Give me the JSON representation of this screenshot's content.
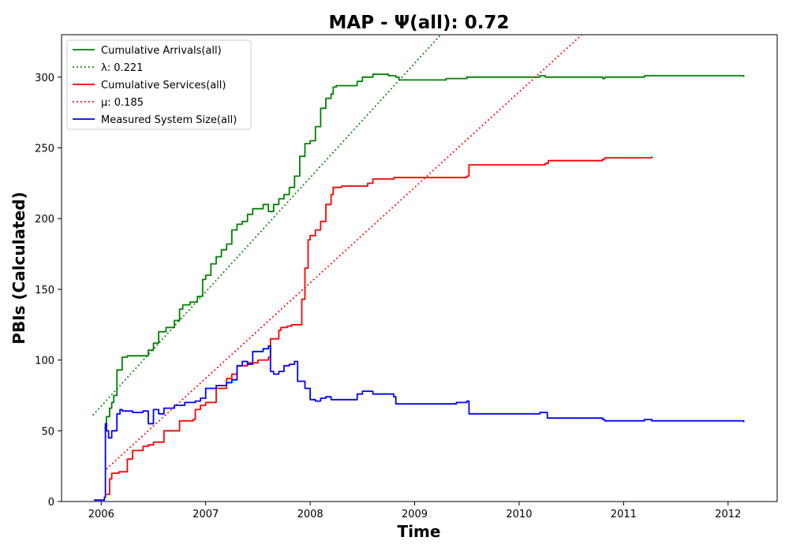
{
  "chart_data": {
    "type": "line",
    "title": "MAP -  Ψ(all): 0.72",
    "xlabel": "Time",
    "ylabel": "PBIs (Calculated)",
    "xlim": [
      2005.62,
      2012.47
    ],
    "ylim": [
      0,
      330
    ],
    "xticks": [
      2006,
      2007,
      2008,
      2009,
      2010,
      2011,
      2012
    ],
    "xtick_labels": [
      "2006",
      "2007",
      "2008",
      "2009",
      "2010",
      "2011",
      "2012"
    ],
    "yticks": [
      0,
      50,
      100,
      150,
      200,
      250,
      300
    ],
    "ytick_labels": [
      "0",
      "50",
      "100",
      "150",
      "200",
      "250",
      "300"
    ],
    "grid": false,
    "legend_position": "upper-left",
    "series": [
      {
        "name": "Cumulative Arrivals(all)",
        "color": "#008000",
        "style": "solid",
        "x": [
          2006.03,
          2006.05,
          2006.08,
          2006.1,
          2006.12,
          2006.15,
          2006.2,
          2006.2,
          2006.25,
          2006.3,
          2006.45,
          2006.5,
          2006.55,
          2006.62,
          2006.7,
          2006.75,
          2006.78,
          2006.85,
          2006.92,
          2006.97,
          2007.0,
          2007.05,
          2007.1,
          2007.15,
          2007.2,
          2007.25,
          2007.3,
          2007.35,
          2007.4,
          2007.45,
          2007.55,
          2007.6,
          2007.65,
          2007.7,
          2007.75,
          2007.8,
          2007.85,
          2007.9,
          2007.95,
          2008.0,
          2008.05,
          2008.1,
          2008.15,
          2008.2,
          2008.22,
          2008.25,
          2008.45,
          2008.5,
          2008.6,
          2008.75,
          2008.82,
          2008.85,
          2009.3,
          2009.5,
          2010.2,
          2010.25,
          2010.8,
          2010.82,
          2011.2,
          2012.15
        ],
        "y": [
          52,
          60,
          66,
          70,
          75,
          93,
          96,
          102,
          103,
          103,
          107,
          112,
          120,
          123,
          128,
          136,
          139,
          141,
          145,
          157,
          160,
          168,
          173,
          178,
          182,
          192,
          196,
          198,
          203,
          207,
          210,
          205,
          210,
          214,
          217,
          222,
          230,
          244,
          253,
          255,
          265,
          278,
          285,
          288,
          293,
          294,
          297,
          300,
          302,
          301,
          300,
          298,
          299,
          300,
          301,
          300,
          299,
          300,
          301,
          300
        ]
      },
      {
        "name": "λ: 0.221",
        "color": "#008000",
        "style": "dotted",
        "x": [
          2005.92,
          2009.25
        ],
        "y": [
          61,
          330
        ]
      },
      {
        "name": "Cumulative Services(all)",
        "color": "#ff0000",
        "style": "solid",
        "x": [
          2006.05,
          2006.08,
          2006.1,
          2006.17,
          2006.25,
          2006.3,
          2006.4,
          2006.45,
          2006.5,
          2006.6,
          2006.75,
          2006.88,
          2006.9,
          2006.95,
          2007.0,
          2007.1,
          2007.2,
          2007.25,
          2007.3,
          2007.4,
          2007.5,
          2007.58,
          2007.6,
          2007.62,
          2007.7,
          2007.72,
          2007.78,
          2007.82,
          2007.88,
          2007.92,
          2007.95,
          2007.98,
          2008.0,
          2008.05,
          2008.1,
          2008.15,
          2008.2,
          2008.22,
          2008.3,
          2008.55,
          2008.6,
          2008.8,
          2009.5,
          2009.52,
          2010.25,
          2010.28,
          2010.8,
          2010.82,
          2011.27
        ],
        "y": [
          5,
          16,
          20,
          21,
          30,
          36,
          39,
          40,
          42,
          50,
          57,
          58,
          65,
          68,
          70,
          80,
          87,
          90,
          96,
          98,
          100,
          100,
          102,
          115,
          121,
          123,
          124,
          125,
          125,
          143,
          165,
          185,
          188,
          192,
          198,
          210,
          217,
          222,
          223,
          225,
          228,
          229,
          230,
          238,
          239,
          241,
          242,
          243,
          244
        ]
      },
      {
        "name": "μ: 0.185",
        "color": "#ff0000",
        "style": "dotted",
        "x": [
          2006.05,
          2010.6
        ],
        "y": [
          23,
          330
        ]
      },
      {
        "name": "Measured System Size(all)",
        "color": "#0000ff",
        "style": "solid",
        "x": [
          2005.93,
          2006.03,
          2006.04,
          2006.05,
          2006.07,
          2006.1,
          2006.15,
          2006.18,
          2006.2,
          2006.3,
          2006.4,
          2006.45,
          2006.5,
          2006.55,
          2006.6,
          2006.7,
          2006.8,
          2006.9,
          2006.95,
          2007.0,
          2007.1,
          2007.2,
          2007.25,
          2007.3,
          2007.35,
          2007.4,
          2007.45,
          2007.55,
          2007.6,
          2007.62,
          2007.65,
          2007.7,
          2007.75,
          2007.8,
          2007.85,
          2007.88,
          2007.95,
          2008.0,
          2008.05,
          2008.1,
          2008.15,
          2008.2,
          2008.3,
          2008.45,
          2008.5,
          2008.6,
          2008.8,
          2008.82,
          2009.4,
          2009.5,
          2009.52,
          2010.2,
          2010.27,
          2010.8,
          2010.82,
          2011.2,
          2011.27,
          2012.15
        ],
        "y": [
          1,
          3,
          55,
          50,
          45,
          50,
          62,
          65,
          64,
          63,
          64,
          55,
          65,
          62,
          66,
          68,
          70,
          71,
          73,
          80,
          82,
          84,
          86,
          96,
          99,
          97,
          106,
          108,
          110,
          92,
          90,
          92,
          96,
          97,
          99,
          85,
          80,
          72,
          71,
          73,
          74,
          72,
          72,
          76,
          78,
          76,
          74,
          69,
          70,
          71,
          62,
          63,
          59,
          58,
          57,
          58,
          57,
          56
        ]
      }
    ]
  }
}
